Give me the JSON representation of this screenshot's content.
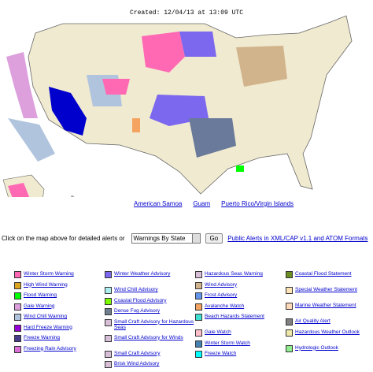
{
  "header": {
    "created": "Created: 12/04/13 at 13:09 UTC"
  },
  "map_links": [
    "American Samoa",
    "Guam",
    "Puerto Rico/Virgin Islands"
  ],
  "controls": {
    "prompt": "Click on the map above for detailed alerts or",
    "select": "Warnings By State",
    "button": "Go",
    "link": "Public Alerts in XML/CAP v1.1 and ATOM Formats"
  },
  "legend": {
    "columns": [
      [
        {
          "label": "Winter Storm Warning",
          "color": "#ff69b4"
        },
        {
          "label": "High Wind Warning",
          "color": "#daa520"
        },
        {
          "label": "Flood Warning",
          "color": "#00ff00"
        },
        {
          "label": "Gale Warning",
          "color": "#dda0dd"
        },
        {
          "label": "Wind Chill Warning",
          "color": "#b0c4de"
        },
        {
          "label": "Hard Freeze Warning",
          "color": "#9400d3"
        },
        {
          "label": "Freeze Warning",
          "color": "#483d8b"
        },
        {
          "label": "Freezing Rain Advisory",
          "color": "#da70d6"
        }
      ],
      [
        {
          "label": "Winter Weather Advisory",
          "color": "#7b68ee"
        },
        {
          "label": "Wind Chill Advisory",
          "color": "#afeeee"
        },
        {
          "label": "Coastal Flood Advisory",
          "color": "#7cfc00"
        },
        {
          "label": "Dense Fog Advisory",
          "color": "#708090"
        },
        {
          "label": "Small Craft Advisory for Hazardous Seas",
          "color": "#d8bfd8"
        },
        {
          "label": "Small Craft Advisory for Winds",
          "color": "#d8bfd8"
        },
        {
          "label": "Small Craft Advisory",
          "color": "#d8bfd8"
        },
        {
          "label": "Brisk Wind Advisory",
          "color": "#d8bfd8"
        }
      ],
      [
        {
          "label": "Hazardous Seas Warning",
          "color": "#d8bfd8"
        },
        {
          "label": "Wind Advisory",
          "color": "#d2b48c"
        },
        {
          "label": "Frost Advisory",
          "color": "#6495ed"
        },
        {
          "label": "Avalanche Watch",
          "color": "#f4a460"
        },
        {
          "label": "Beach Hazards Statement",
          "color": "#40e0d0"
        },
        {
          "label": "Gale Watch",
          "color": "#ffc0cb"
        },
        {
          "label": "Winter Storm Watch",
          "color": "#4682b4"
        },
        {
          "label": "Freeze Watch",
          "color": "#00ffff"
        }
      ],
      [
        {
          "label": "Coastal Flood Statement",
          "color": "#6b8e23"
        },
        {
          "label": "Special Weather Statement",
          "color": "#ffe4b5"
        },
        {
          "label": "Marine Weather Statement",
          "color": "#ffdab9"
        },
        {
          "label": "Air Quality Alert",
          "color": "#808080"
        },
        {
          "label": "Hazardous Weather Outlook",
          "color": "#eee8aa"
        },
        {
          "label": "Hydrologic Outlook",
          "color": "#90ee90"
        }
      ]
    ]
  }
}
